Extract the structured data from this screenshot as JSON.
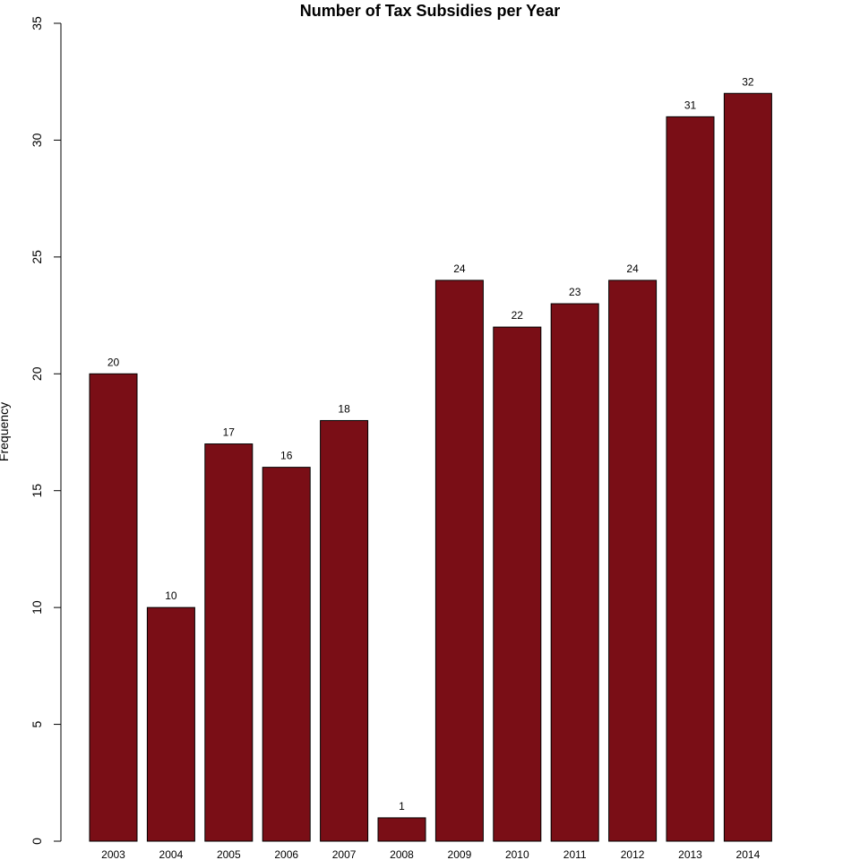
{
  "chart_data": {
    "type": "bar",
    "title": "Number of Tax Subsidies per Year",
    "xlabel": "",
    "ylabel": "Frequency",
    "categories": [
      "2003",
      "2004",
      "2005",
      "2006",
      "2007",
      "2008",
      "2009",
      "2010",
      "2011",
      "2012",
      "2013",
      "2014"
    ],
    "values": [
      20,
      10,
      17,
      16,
      18,
      1,
      24,
      22,
      23,
      24,
      31,
      32
    ],
    "ylim": [
      0,
      35
    ],
    "yticks": [
      0,
      5,
      10,
      15,
      20,
      25,
      30,
      35
    ],
    "grid": false,
    "legend": "none",
    "bar_color": "#7a0e16",
    "bar_stroke": "#000000"
  }
}
